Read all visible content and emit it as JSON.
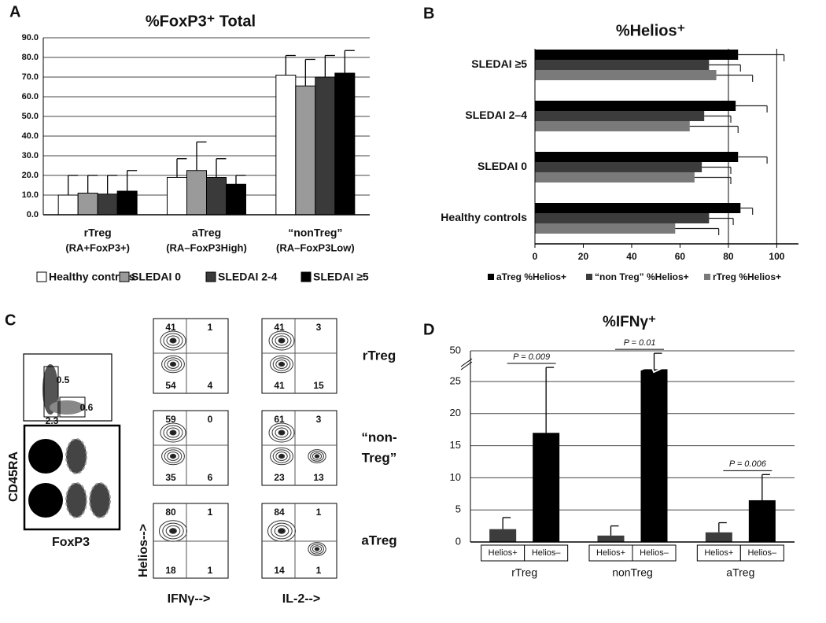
{
  "chart_data": [
    {
      "type": "bar",
      "panel": "A",
      "title": "%FoxP3⁺ Total",
      "categories": [
        "rTreg",
        "aTreg",
        "“nonTreg”"
      ],
      "category_sublabels": [
        "(RA+FoxP3+)",
        "(RA–FoxP3High)",
        "(RA–FoxP3Low)"
      ],
      "series": [
        {
          "name": "Healthy controls",
          "color": "#ffffff",
          "values": [
            10,
            19,
            71
          ],
          "errors": [
            10,
            9.5,
            10
          ]
        },
        {
          "name": "SLEDAI 0",
          "color": "#9a9a9a",
          "values": [
            11,
            22.5,
            65.5
          ],
          "errors": [
            9,
            14.5,
            13.5
          ]
        },
        {
          "name": "SLEDAI 2-4",
          "color": "#3a3a3a",
          "values": [
            10.5,
            19,
            70
          ],
          "errors": [
            9.5,
            9.5,
            11
          ]
        },
        {
          "name": "SLEDAI ≥5",
          "color": "#000000",
          "values": [
            12,
            15.5,
            72
          ],
          "errors": [
            10.5,
            4.5,
            11.5
          ]
        }
      ],
      "ylim": [
        0,
        90
      ],
      "yticks": [
        {
          "value": 0,
          "label": "0.0"
        },
        {
          "value": 10,
          "label": "10.0"
        },
        {
          "value": 20,
          "label": "20.0"
        },
        {
          "value": 30,
          "label": "30.0"
        },
        {
          "value": 40,
          "label": "40.0"
        },
        {
          "value": 50,
          "label": "50.0"
        },
        {
          "value": 60,
          "label": "60.0"
        },
        {
          "value": 70,
          "label": "70.0"
        },
        {
          "value": 80,
          "label": "80.0"
        },
        {
          "value": 90,
          "label": "90.0"
        }
      ],
      "grid": true,
      "legend": "bottom"
    },
    {
      "type": "bar",
      "orientation": "horizontal",
      "panel": "B",
      "title": "%Helios⁺",
      "categories": [
        "SLEDAI ≥5",
        "SLEDAI 2–4",
        "SLEDAI 0",
        "Healthy controls"
      ],
      "series": [
        {
          "name": "aTreg %Helios+",
          "color": "#000000",
          "values": [
            84,
            83,
            84,
            85
          ],
          "errors": [
            19,
            13,
            12,
            5
          ]
        },
        {
          "name": "“non Treg” %Helios+",
          "color": "#3c3c3c",
          "values": [
            72,
            70,
            69,
            72
          ],
          "errors": [
            13,
            11,
            12,
            10
          ]
        },
        {
          "name": "rTreg %Helios+",
          "color": "#7a7a7a",
          "values": [
            75,
            64,
            66,
            58
          ],
          "errors": [
            15,
            20,
            15,
            18
          ]
        }
      ],
      "xlim": [
        0,
        108
      ],
      "xticks": [
        0,
        20,
        40,
        60,
        80,
        100
      ],
      "xgrid": [
        80,
        100
      ],
      "legend": "bottom"
    },
    {
      "type": "bar",
      "panel": "D",
      "title": "%IFNγ⁺",
      "categories": [
        "rTreg",
        "nonTreg",
        "aTreg"
      ],
      "series": [
        {
          "name": "Helios+",
          "color": "#3c3c3c",
          "values": [
            2,
            1,
            1.5
          ],
          "errors": [
            1.8,
            1.5,
            1.5
          ]
        },
        {
          "name": "Helios–",
          "color": "#000000",
          "values": [
            17,
            35,
            6.5
          ],
          "errors": [
            19.5,
            13,
            4
          ]
        }
      ],
      "annotations": [
        "P = 0.009",
        "P = 0.01",
        "P = 0.006"
      ],
      "ylim": [
        0,
        50
      ],
      "ybreak": 25,
      "yticks": [
        0,
        5,
        10,
        15,
        20,
        25,
        50
      ],
      "grid": true
    }
  ],
  "flow_panel": {
    "panel": "C",
    "gate_values": [
      "0.5",
      "0.6",
      "2.3"
    ],
    "y_label": "CD45RA",
    "x_label": "FoxP3",
    "plot_y_label": "Helios-->",
    "column_labels": [
      "IFNγ-->",
      "IL-2-->"
    ],
    "rows": [
      {
        "label": [
          "rTreg"
        ],
        "plots": [
          {
            "quadrants": [
              41,
              1,
              54,
              4
            ]
          },
          {
            "quadrants": [
              41,
              3,
              41,
              15
            ]
          }
        ]
      },
      {
        "label": [
          "“non-",
          "Treg”"
        ],
        "plots": [
          {
            "quadrants": [
              59,
              0,
              35,
              6
            ]
          },
          {
            "quadrants": [
              61,
              3,
              23,
              13
            ]
          }
        ]
      },
      {
        "label": [
          "aTreg"
        ],
        "plots": [
          {
            "quadrants": [
              80,
              1,
              18,
              1
            ]
          },
          {
            "quadrants": [
              84,
              1,
              14,
              1
            ]
          }
        ]
      }
    ]
  }
}
